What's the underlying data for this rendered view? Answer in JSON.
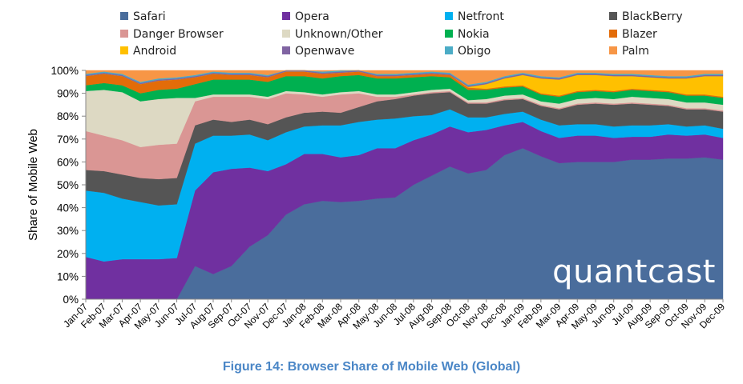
{
  "caption": "Figure 14: Browser Share of Mobile Web (Global)",
  "watermark": "quantcast",
  "chart_data": {
    "type": "area",
    "stacked": true,
    "ylabel": "Share of Mobile Web",
    "ylim": [
      0,
      100
    ],
    "yticks": [
      "0%",
      "10%",
      "20%",
      "30%",
      "40%",
      "50%",
      "60%",
      "70%",
      "80%",
      "90%",
      "100%"
    ],
    "grid": false,
    "legend_position": "top",
    "categories": [
      "Jan-07",
      "Feb-07",
      "Mar-07",
      "Apr-07",
      "May-07",
      "Jun-07",
      "Jul-07",
      "Aug-07",
      "Sep-07",
      "Oct-07",
      "Nov-07",
      "Dec-07",
      "Jan-08",
      "Feb-08",
      "Mar-08",
      "Apr-08",
      "May-08",
      "Jun-08",
      "Jul-08",
      "Aug-08",
      "Sep-08",
      "Oct-08",
      "Nov-08",
      "Dec-08",
      "Jan-09",
      "Feb-09",
      "Mar-09",
      "Apr-09",
      "May-09",
      "Jun-09",
      "Jul-09",
      "Aug-09",
      "Sep-09",
      "Oct-09",
      "Nov-09",
      "Dec-09"
    ],
    "series": [
      {
        "name": "Safari",
        "color": "#4a6d9c",
        "values": [
          0,
          0,
          0,
          0,
          0,
          0,
          14.5,
          11,
          14.5,
          23,
          28,
          37,
          41.5,
          43,
          42.5,
          43,
          44,
          44.5,
          50,
          54,
          58,
          55,
          56.5,
          63,
          66,
          62.5,
          59.5,
          60,
          60,
          60,
          61,
          61,
          61.5,
          61.5,
          62,
          61
        ]
      },
      {
        "name": "Opera",
        "color": "#7030a0",
        "values": [
          18.5,
          16.5,
          17.5,
          17.5,
          17.5,
          18,
          33,
          44.5,
          42.5,
          34.5,
          28,
          22,
          22,
          20.5,
          19.5,
          20,
          22,
          21.5,
          19.5,
          18,
          17.5,
          18,
          17.5,
          13,
          11.5,
          11,
          11,
          11.5,
          11.5,
          10.5,
          10,
          10,
          10.5,
          10,
          10,
          9.5
        ]
      },
      {
        "name": "Netfront",
        "color": "#00b0f0",
        "values": [
          29,
          30,
          26.5,
          25,
          23.5,
          23.5,
          20.5,
          16,
          14.5,
          14.5,
          13.5,
          14,
          12,
          12.5,
          14,
          14.5,
          12.5,
          13,
          10.5,
          8.5,
          7.5,
          6.5,
          5.5,
          5,
          4.5,
          5,
          5.5,
          5,
          5,
          5,
          5,
          5,
          4.5,
          4,
          4,
          4
        ]
      },
      {
        "name": "BlackBerry",
        "color": "#555555",
        "values": [
          9,
          9.5,
          10.5,
          10.5,
          11.5,
          11.5,
          8,
          7,
          6,
          6.5,
          7,
          6.5,
          6,
          6,
          5.5,
          6.5,
          8,
          8.5,
          9,
          9.5,
          7.5,
          6,
          6,
          6,
          5.5,
          6,
          7,
          8.5,
          9,
          9.5,
          9.5,
          9,
          8,
          7.5,
          7,
          7.5
        ]
      },
      {
        "name": "Danger Browser",
        "color": "#da9694",
        "values": [
          17,
          15.5,
          15,
          13.5,
          15,
          15,
          10.5,
          10,
          11,
          10,
          11,
          10.5,
          8,
          6.5,
          8,
          6,
          2,
          1,
          0.5,
          0.5,
          0.5,
          0.5,
          0.5,
          0.5,
          0.5,
          0.5,
          0.5,
          0.5,
          0.5,
          0.5,
          0.5,
          0.5,
          0.5,
          0.5,
          0.5,
          0.5
        ]
      },
      {
        "name": "Unknown/Other",
        "color": "#ddd9c3",
        "values": [
          17.5,
          20,
          21,
          20,
          20,
          20,
          1.5,
          1,
          1,
          1,
          1,
          1,
          1,
          1,
          1,
          1,
          1,
          1,
          1,
          1,
          1,
          1,
          1.5,
          1.5,
          1.5,
          1.5,
          2,
          2,
          2,
          2,
          2.5,
          2.5,
          2.5,
          2.5,
          2.5,
          2.5
        ]
      },
      {
        "name": "Nokia",
        "color": "#00b050",
        "values": [
          2.5,
          3,
          3,
          3.5,
          4,
          4,
          6,
          6.5,
          6.5,
          6.5,
          6.5,
          6.5,
          7,
          7,
          7,
          7,
          7,
          7,
          6.5,
          6,
          5,
          4.5,
          4,
          3.5,
          3.5,
          3,
          3,
          3,
          3,
          3,
          3,
          3,
          3,
          3,
          3,
          3
        ]
      },
      {
        "name": "Blazer",
        "color": "#e36c09",
        "values": [
          4,
          4,
          4,
          4,
          4,
          4,
          3,
          2.5,
          2,
          2,
          2,
          2,
          2,
          2,
          1.5,
          1.5,
          1,
          1,
          1,
          1,
          1,
          1,
          0.5,
          0.5,
          0.5,
          0.5,
          0.5,
          0.5,
          0.5,
          0.5,
          0.5,
          0.5,
          0.5,
          0.5,
          0.5,
          0.5
        ]
      },
      {
        "name": "Android",
        "color": "#ffc000",
        "values": [
          0,
          0,
          0,
          0,
          0,
          0,
          0,
          0,
          0,
          0,
          0,
          0,
          0,
          0,
          0,
          0,
          0,
          0,
          0,
          0,
          0,
          0.3,
          2,
          3.5,
          4.5,
          6.5,
          7,
          7,
          6.5,
          6.5,
          5.5,
          5.5,
          5.5,
          7,
          8,
          9
        ]
      },
      {
        "name": "Openwave",
        "color": "#8064a2",
        "values": [
          0.5,
          0.5,
          0.5,
          0.5,
          0.5,
          0.5,
          0.5,
          0.5,
          0.5,
          0.5,
          0.5,
          0.5,
          0.5,
          0.5,
          0.5,
          0.5,
          0.5,
          0.5,
          0.5,
          0.5,
          0.5,
          0.5,
          0.5,
          0.5,
          0.5,
          0.5,
          0.5,
          0.5,
          0.5,
          0.5,
          0.5,
          0.5,
          0.5,
          0.5,
          0.5,
          0.5
        ]
      },
      {
        "name": "Obigo",
        "color": "#4bacc6",
        "values": [
          0.5,
          0.5,
          0.5,
          0.5,
          0.5,
          0.5,
          0.5,
          0.5,
          0.5,
          0.5,
          0.5,
          0.5,
          0.5,
          0.5,
          0.5,
          0.5,
          0.5,
          0.5,
          0.5,
          0.5,
          0.5,
          0.5,
          0.5,
          0.5,
          0.5,
          0.5,
          0.5,
          0.5,
          0.5,
          0.5,
          0.5,
          0.5,
          0.5,
          0.5,
          0.5,
          0.5
        ]
      },
      {
        "name": "Palm",
        "color": "#f79646",
        "values": [
          1,
          0.5,
          0.5,
          0.5,
          0.5,
          0.5,
          1.5,
          0.5,
          1,
          1,
          1,
          0.5,
          0.5,
          0.5,
          0.5,
          0.5,
          0.5,
          0.5,
          0.5,
          0.5,
          0.5,
          0.5,
          0.5,
          0.5,
          0.5,
          0.5,
          0.5,
          0.5,
          0.5,
          0.5,
          0.5,
          0.5,
          0.5,
          0.5,
          0.5,
          0.5
        ]
      }
    ]
  }
}
